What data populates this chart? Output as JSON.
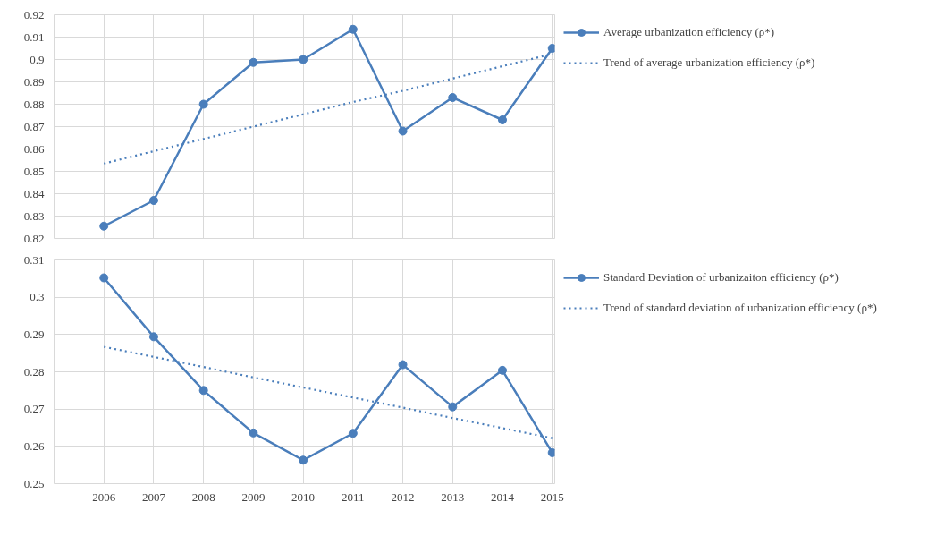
{
  "chart_data": [
    {
      "type": "line",
      "categories": [
        "2006",
        "2007",
        "2008",
        "2009",
        "2010",
        "2011",
        "2012",
        "2013",
        "2014",
        "2015"
      ],
      "ylim": [
        0.82,
        0.92
      ],
      "yticks": [
        0.82,
        0.83,
        0.84,
        0.85,
        0.86,
        0.87,
        0.88,
        0.89,
        {
          "value": 0.9,
          "label": "0.9"
        },
        0.91,
        0.92
      ],
      "grid": true,
      "legend": "right",
      "tick_labels": "y",
      "series": [
        {
          "name": "Average urbanization efficiency (ρ*)",
          "color": "#4a7ebb",
          "marker": "circle",
          "line_style": "solid",
          "values": [
            0.8255,
            0.837,
            0.88,
            0.8987,
            0.9,
            0.9135,
            0.868,
            0.883,
            0.873,
            0.905
          ]
        },
        {
          "name": "Trend of average urbanization efficiency (ρ*)",
          "color": "#4a7ebb",
          "marker": "none",
          "line_style": "dotted",
          "values": [
            0.8535,
            0.859,
            0.8645,
            0.87,
            0.8755,
            0.881,
            0.886,
            0.8915,
            0.897,
            0.9025
          ]
        }
      ]
    },
    {
      "type": "line",
      "categories": [
        "2006",
        "2007",
        "2008",
        "2009",
        "2010",
        "2011",
        "2012",
        "2013",
        "2014",
        "2015"
      ],
      "ylim": [
        0.25,
        0.31
      ],
      "yticks": [
        0.25,
        0.26,
        0.27,
        0.28,
        0.29,
        {
          "value": 0.3,
          "label": "0.3"
        },
        0.31
      ],
      "grid": true,
      "legend": "right",
      "series": [
        {
          "name": "Standard Deviation of urbanizaiton efficiency (ρ*)",
          "color": "#4a7ebb",
          "marker": "circle",
          "line_style": "solid",
          "values": [
            0.3052,
            0.2894,
            0.275,
            0.2636,
            0.2563,
            0.2635,
            0.2819,
            0.2706,
            0.2804,
            0.2583
          ]
        },
        {
          "name": "Trend of standard deviation of urbanization efficiency (ρ*)",
          "color": "#4a7ebb",
          "marker": "none",
          "line_style": "dotted",
          "values": [
            0.2867,
            0.284,
            0.2813,
            0.2785,
            0.2758,
            0.2731,
            0.2704,
            0.2676,
            0.2649,
            0.2622
          ]
        }
      ]
    }
  ]
}
